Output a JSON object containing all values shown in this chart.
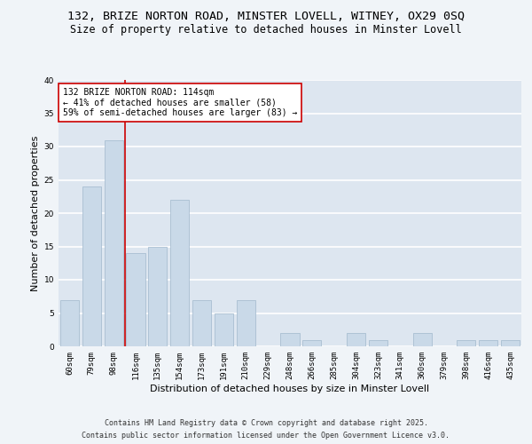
{
  "title": "132, BRIZE NORTON ROAD, MINSTER LOVELL, WITNEY, OX29 0SQ",
  "subtitle": "Size of property relative to detached houses in Minster Lovell",
  "xlabel": "Distribution of detached houses by size in Minster Lovell",
  "ylabel": "Number of detached properties",
  "categories": [
    "60sqm",
    "79sqm",
    "98sqm",
    "116sqm",
    "135sqm",
    "154sqm",
    "173sqm",
    "191sqm",
    "210sqm",
    "229sqm",
    "248sqm",
    "266sqm",
    "285sqm",
    "304sqm",
    "323sqm",
    "341sqm",
    "360sqm",
    "379sqm",
    "398sqm",
    "416sqm",
    "435sqm"
  ],
  "values": [
    7,
    24,
    31,
    14,
    15,
    22,
    7,
    5,
    7,
    0,
    2,
    1,
    0,
    2,
    1,
    0,
    2,
    0,
    1,
    1,
    1
  ],
  "bar_color": "#c9d9e8",
  "bar_edge_color": "#a0b8cc",
  "property_line_x": 2.5,
  "property_line_color": "#cc0000",
  "annotation_text": "132 BRIZE NORTON ROAD: 114sqm\n← 41% of detached houses are smaller (58)\n59% of semi-detached houses are larger (83) →",
  "annotation_box_color": "#ffffff",
  "annotation_box_edge": "#cc0000",
  "ylim": [
    0,
    40
  ],
  "yticks": [
    0,
    5,
    10,
    15,
    20,
    25,
    30,
    35,
    40
  ],
  "background_color": "#dde6f0",
  "grid_color": "#ffffff",
  "footer_line1": "Contains HM Land Registry data © Crown copyright and database right 2025.",
  "footer_line2": "Contains public sector information licensed under the Open Government Licence v3.0.",
  "title_fontsize": 9.5,
  "subtitle_fontsize": 8.5,
  "axis_label_fontsize": 8,
  "tick_fontsize": 6.5,
  "annotation_fontsize": 7,
  "footer_fontsize": 6
}
